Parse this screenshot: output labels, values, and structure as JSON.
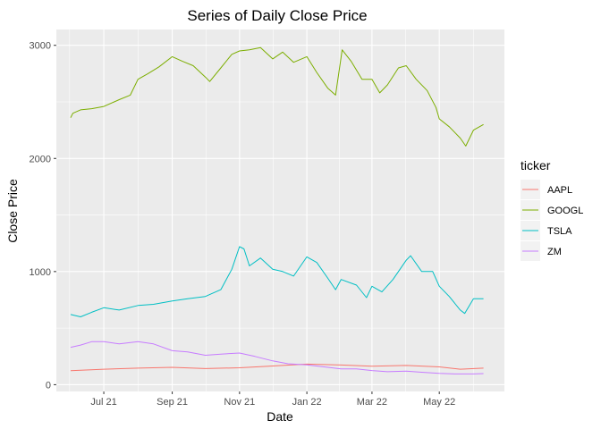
{
  "chart_data": {
    "type": "line",
    "title": "Series of Daily Close Price",
    "xlabel": "Date",
    "ylabel": "Close Price",
    "x_range": [
      "2021-05-19",
      "2022-06-29"
    ],
    "ylim": [
      -60,
      3140
    ],
    "x_ticks": [
      {
        "date": "2021-07-01",
        "label": "Jul 21"
      },
      {
        "date": "2021-09-01",
        "label": "Sep 21"
      },
      {
        "date": "2021-11-01",
        "label": "Nov 21"
      },
      {
        "date": "2022-01-01",
        "label": "Jan 22"
      },
      {
        "date": "2022-03-01",
        "label": "Mar 22"
      },
      {
        "date": "2022-05-01",
        "label": "May 22"
      }
    ],
    "y_ticks": [
      0,
      1000,
      2000,
      3000
    ],
    "grid": true,
    "legend": {
      "title": "ticker",
      "position": "right"
    },
    "series": [
      {
        "name": "AAPL",
        "color": "#F8766D",
        "points": [
          [
            "2021-06-01",
            124
          ],
          [
            "2021-07-01",
            137
          ],
          [
            "2021-08-01",
            146
          ],
          [
            "2021-09-01",
            153
          ],
          [
            "2021-10-01",
            142
          ],
          [
            "2021-11-01",
            149
          ],
          [
            "2021-12-01",
            165
          ],
          [
            "2022-01-01",
            182
          ],
          [
            "2022-02-01",
            174
          ],
          [
            "2022-03-01",
            163
          ],
          [
            "2022-04-01",
            170
          ],
          [
            "2022-05-01",
            157
          ],
          [
            "2022-05-20",
            137
          ],
          [
            "2022-06-10",
            146
          ]
        ]
      },
      {
        "name": "GOOGL",
        "color": "#7CAE00",
        "points": [
          [
            "2021-06-01",
            2360
          ],
          [
            "2021-06-03",
            2400
          ],
          [
            "2021-06-10",
            2430
          ],
          [
            "2021-06-20",
            2440
          ],
          [
            "2021-07-01",
            2460
          ],
          [
            "2021-07-15",
            2520
          ],
          [
            "2021-07-25",
            2560
          ],
          [
            "2021-08-01",
            2700
          ],
          [
            "2021-08-10",
            2750
          ],
          [
            "2021-08-20",
            2810
          ],
          [
            "2021-09-01",
            2900
          ],
          [
            "2021-09-10",
            2860
          ],
          [
            "2021-09-20",
            2820
          ],
          [
            "2021-10-01",
            2720
          ],
          [
            "2021-10-05",
            2680
          ],
          [
            "2021-10-15",
            2800
          ],
          [
            "2021-10-25",
            2920
          ],
          [
            "2021-11-01",
            2950
          ],
          [
            "2021-11-10",
            2960
          ],
          [
            "2021-11-20",
            2980
          ],
          [
            "2021-12-01",
            2880
          ],
          [
            "2021-12-10",
            2940
          ],
          [
            "2021-12-20",
            2850
          ],
          [
            "2022-01-01",
            2900
          ],
          [
            "2022-01-10",
            2760
          ],
          [
            "2022-01-20",
            2620
          ],
          [
            "2022-01-27",
            2560
          ],
          [
            "2022-02-02",
            2960
          ],
          [
            "2022-02-10",
            2860
          ],
          [
            "2022-02-20",
            2700
          ],
          [
            "2022-03-01",
            2700
          ],
          [
            "2022-03-08",
            2580
          ],
          [
            "2022-03-15",
            2650
          ],
          [
            "2022-03-25",
            2800
          ],
          [
            "2022-04-01",
            2820
          ],
          [
            "2022-04-10",
            2700
          ],
          [
            "2022-04-20",
            2600
          ],
          [
            "2022-04-28",
            2450
          ],
          [
            "2022-05-01",
            2350
          ],
          [
            "2022-05-10",
            2280
          ],
          [
            "2022-05-20",
            2180
          ],
          [
            "2022-05-25",
            2110
          ],
          [
            "2022-06-01",
            2250
          ],
          [
            "2022-06-10",
            2300
          ]
        ]
      },
      {
        "name": "TSLA",
        "color": "#00BFC4",
        "points": [
          [
            "2021-06-01",
            620
          ],
          [
            "2021-06-10",
            600
          ],
          [
            "2021-06-20",
            640
          ],
          [
            "2021-07-01",
            680
          ],
          [
            "2021-07-15",
            660
          ],
          [
            "2021-08-01",
            700
          ],
          [
            "2021-08-15",
            710
          ],
          [
            "2021-09-01",
            740
          ],
          [
            "2021-09-15",
            760
          ],
          [
            "2021-10-01",
            780
          ],
          [
            "2021-10-15",
            840
          ],
          [
            "2021-10-25",
            1020
          ],
          [
            "2021-11-01",
            1220
          ],
          [
            "2021-11-05",
            1200
          ],
          [
            "2021-11-10",
            1050
          ],
          [
            "2021-11-20",
            1120
          ],
          [
            "2021-12-01",
            1020
          ],
          [
            "2021-12-10",
            1000
          ],
          [
            "2021-12-20",
            960
          ],
          [
            "2022-01-01",
            1130
          ],
          [
            "2022-01-10",
            1080
          ],
          [
            "2022-01-20",
            940
          ],
          [
            "2022-01-27",
            840
          ],
          [
            "2022-02-01",
            930
          ],
          [
            "2022-02-15",
            880
          ],
          [
            "2022-02-24",
            770
          ],
          [
            "2022-03-01",
            870
          ],
          [
            "2022-03-10",
            820
          ],
          [
            "2022-03-20",
            930
          ],
          [
            "2022-04-01",
            1100
          ],
          [
            "2022-04-05",
            1140
          ],
          [
            "2022-04-15",
            1000
          ],
          [
            "2022-04-25",
            1000
          ],
          [
            "2022-05-01",
            870
          ],
          [
            "2022-05-10",
            780
          ],
          [
            "2022-05-20",
            660
          ],
          [
            "2022-05-24",
            630
          ],
          [
            "2022-06-01",
            760
          ],
          [
            "2022-06-10",
            760
          ]
        ]
      },
      {
        "name": "ZM",
        "color": "#C77CFF",
        "points": [
          [
            "2021-06-01",
            330
          ],
          [
            "2021-06-10",
            350
          ],
          [
            "2021-06-20",
            380
          ],
          [
            "2021-07-01",
            380
          ],
          [
            "2021-07-15",
            360
          ],
          [
            "2021-08-01",
            380
          ],
          [
            "2021-08-15",
            360
          ],
          [
            "2021-09-01",
            300
          ],
          [
            "2021-09-15",
            290
          ],
          [
            "2021-10-01",
            260
          ],
          [
            "2021-10-15",
            270
          ],
          [
            "2021-11-01",
            280
          ],
          [
            "2021-11-15",
            250
          ],
          [
            "2021-12-01",
            210
          ],
          [
            "2021-12-15",
            185
          ],
          [
            "2022-01-01",
            175
          ],
          [
            "2022-01-15",
            160
          ],
          [
            "2022-02-01",
            140
          ],
          [
            "2022-02-15",
            140
          ],
          [
            "2022-03-01",
            125
          ],
          [
            "2022-03-15",
            115
          ],
          [
            "2022-04-01",
            120
          ],
          [
            "2022-04-15",
            110
          ],
          [
            "2022-05-01",
            100
          ],
          [
            "2022-05-15",
            95
          ],
          [
            "2022-06-01",
            95
          ],
          [
            "2022-06-10",
            98
          ]
        ]
      }
    ]
  }
}
